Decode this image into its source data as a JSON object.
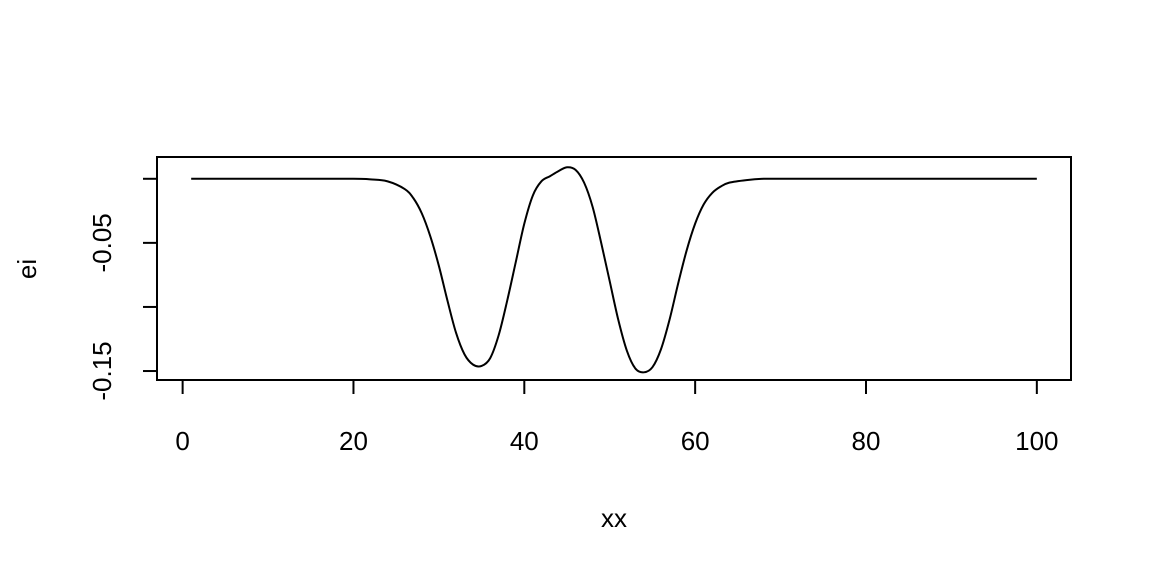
{
  "chart_data": {
    "type": "line",
    "title": "",
    "xlabel": "xx",
    "ylabel": "ei",
    "xlim": [
      -3,
      104
    ],
    "ylim": [
      -0.157,
      0.017
    ],
    "x_ticks": [
      0,
      20,
      40,
      60,
      80,
      100
    ],
    "x_tick_labels": [
      "0",
      "20",
      "40",
      "60",
      "80",
      "100"
    ],
    "y_ticks": [
      0,
      -0.05,
      -0.1,
      -0.15
    ],
    "y_tick_labels": [
      "",
      "-0.05",
      "",
      "-0.15"
    ],
    "grid": false,
    "series": [
      {
        "x": [
          1,
          10,
          20,
          22,
          24,
          26,
          27,
          28,
          29,
          30,
          31,
          32,
          33,
          34,
          35,
          36,
          37,
          38,
          39,
          40,
          41,
          42,
          43,
          44,
          45,
          46,
          47,
          48,
          49,
          50,
          51,
          52,
          53,
          54,
          55,
          56,
          57,
          58,
          59,
          60,
          61,
          62,
          63,
          64,
          66,
          68,
          70,
          75,
          80,
          90,
          100
        ],
        "y": [
          0,
          0,
          0,
          -0.0005,
          -0.002,
          -0.008,
          -0.015,
          -0.027,
          -0.045,
          -0.068,
          -0.095,
          -0.12,
          -0.137,
          -0.145,
          -0.146,
          -0.14,
          -0.122,
          -0.095,
          -0.065,
          -0.035,
          -0.013,
          -0.002,
          0.002,
          0.006,
          0.009,
          0.007,
          -0.003,
          -0.022,
          -0.05,
          -0.08,
          -0.11,
          -0.134,
          -0.148,
          -0.151,
          -0.147,
          -0.133,
          -0.11,
          -0.082,
          -0.056,
          -0.035,
          -0.02,
          -0.011,
          -0.006,
          -0.003,
          -0.001,
          0,
          0,
          0,
          0,
          0,
          0
        ]
      }
    ]
  }
}
